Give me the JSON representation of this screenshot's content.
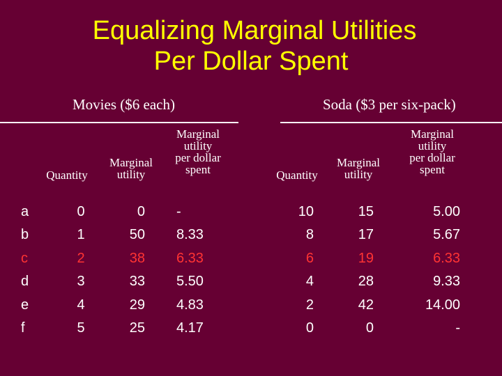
{
  "title_line1": "Equalizing Marginal Utilities",
  "title_line2": "Per Dollar Spent",
  "movies": {
    "heading": "Movies ($6 each)",
    "col_quantity": "Quantity",
    "col_mu": [
      "Marginal",
      "utility"
    ],
    "col_mupd": [
      "Marginal",
      "utility",
      "per dollar",
      "spent"
    ]
  },
  "soda": {
    "heading": "Soda ($3 per six-pack)",
    "col_quantity": "Quantity",
    "col_mu": [
      "Marginal",
      "utility"
    ],
    "col_mupd": [
      "Marginal",
      "utility",
      "per dollar",
      "spent"
    ]
  },
  "rows": [
    {
      "label": "a",
      "m_qty": "0",
      "m_mu": "0",
      "m_mupd": "-",
      "s_qty": "10",
      "s_mu": "15",
      "s_mupd": "5.00",
      "highlight": false
    },
    {
      "label": "b",
      "m_qty": "1",
      "m_mu": "50",
      "m_mupd": "8.33",
      "s_qty": "8",
      "s_mu": "17",
      "s_mupd": "5.67",
      "highlight": false
    },
    {
      "label": "c",
      "m_qty": "2",
      "m_mu": "38",
      "m_mupd": "6.33",
      "s_qty": "6",
      "s_mu": "19",
      "s_mupd": "6.33",
      "highlight": true
    },
    {
      "label": "d",
      "m_qty": "3",
      "m_mu": "33",
      "m_mupd": "5.50",
      "s_qty": "4",
      "s_mu": "28",
      "s_mupd": "9.33",
      "highlight": false
    },
    {
      "label": "e",
      "m_qty": "4",
      "m_mu": "29",
      "m_mupd": "4.83",
      "s_qty": "2",
      "s_mu": "42",
      "s_mupd": "14.00",
      "highlight": false
    },
    {
      "label": "f",
      "m_qty": "5",
      "m_mu": "25",
      "m_mupd": "4.17",
      "s_qty": "0",
      "s_mu": "0",
      "s_mupd": "-",
      "highlight": false
    }
  ],
  "colors": {
    "background": "#660033",
    "title": "#ffff00",
    "text": "#ffffff",
    "highlight": "#ff3333"
  }
}
